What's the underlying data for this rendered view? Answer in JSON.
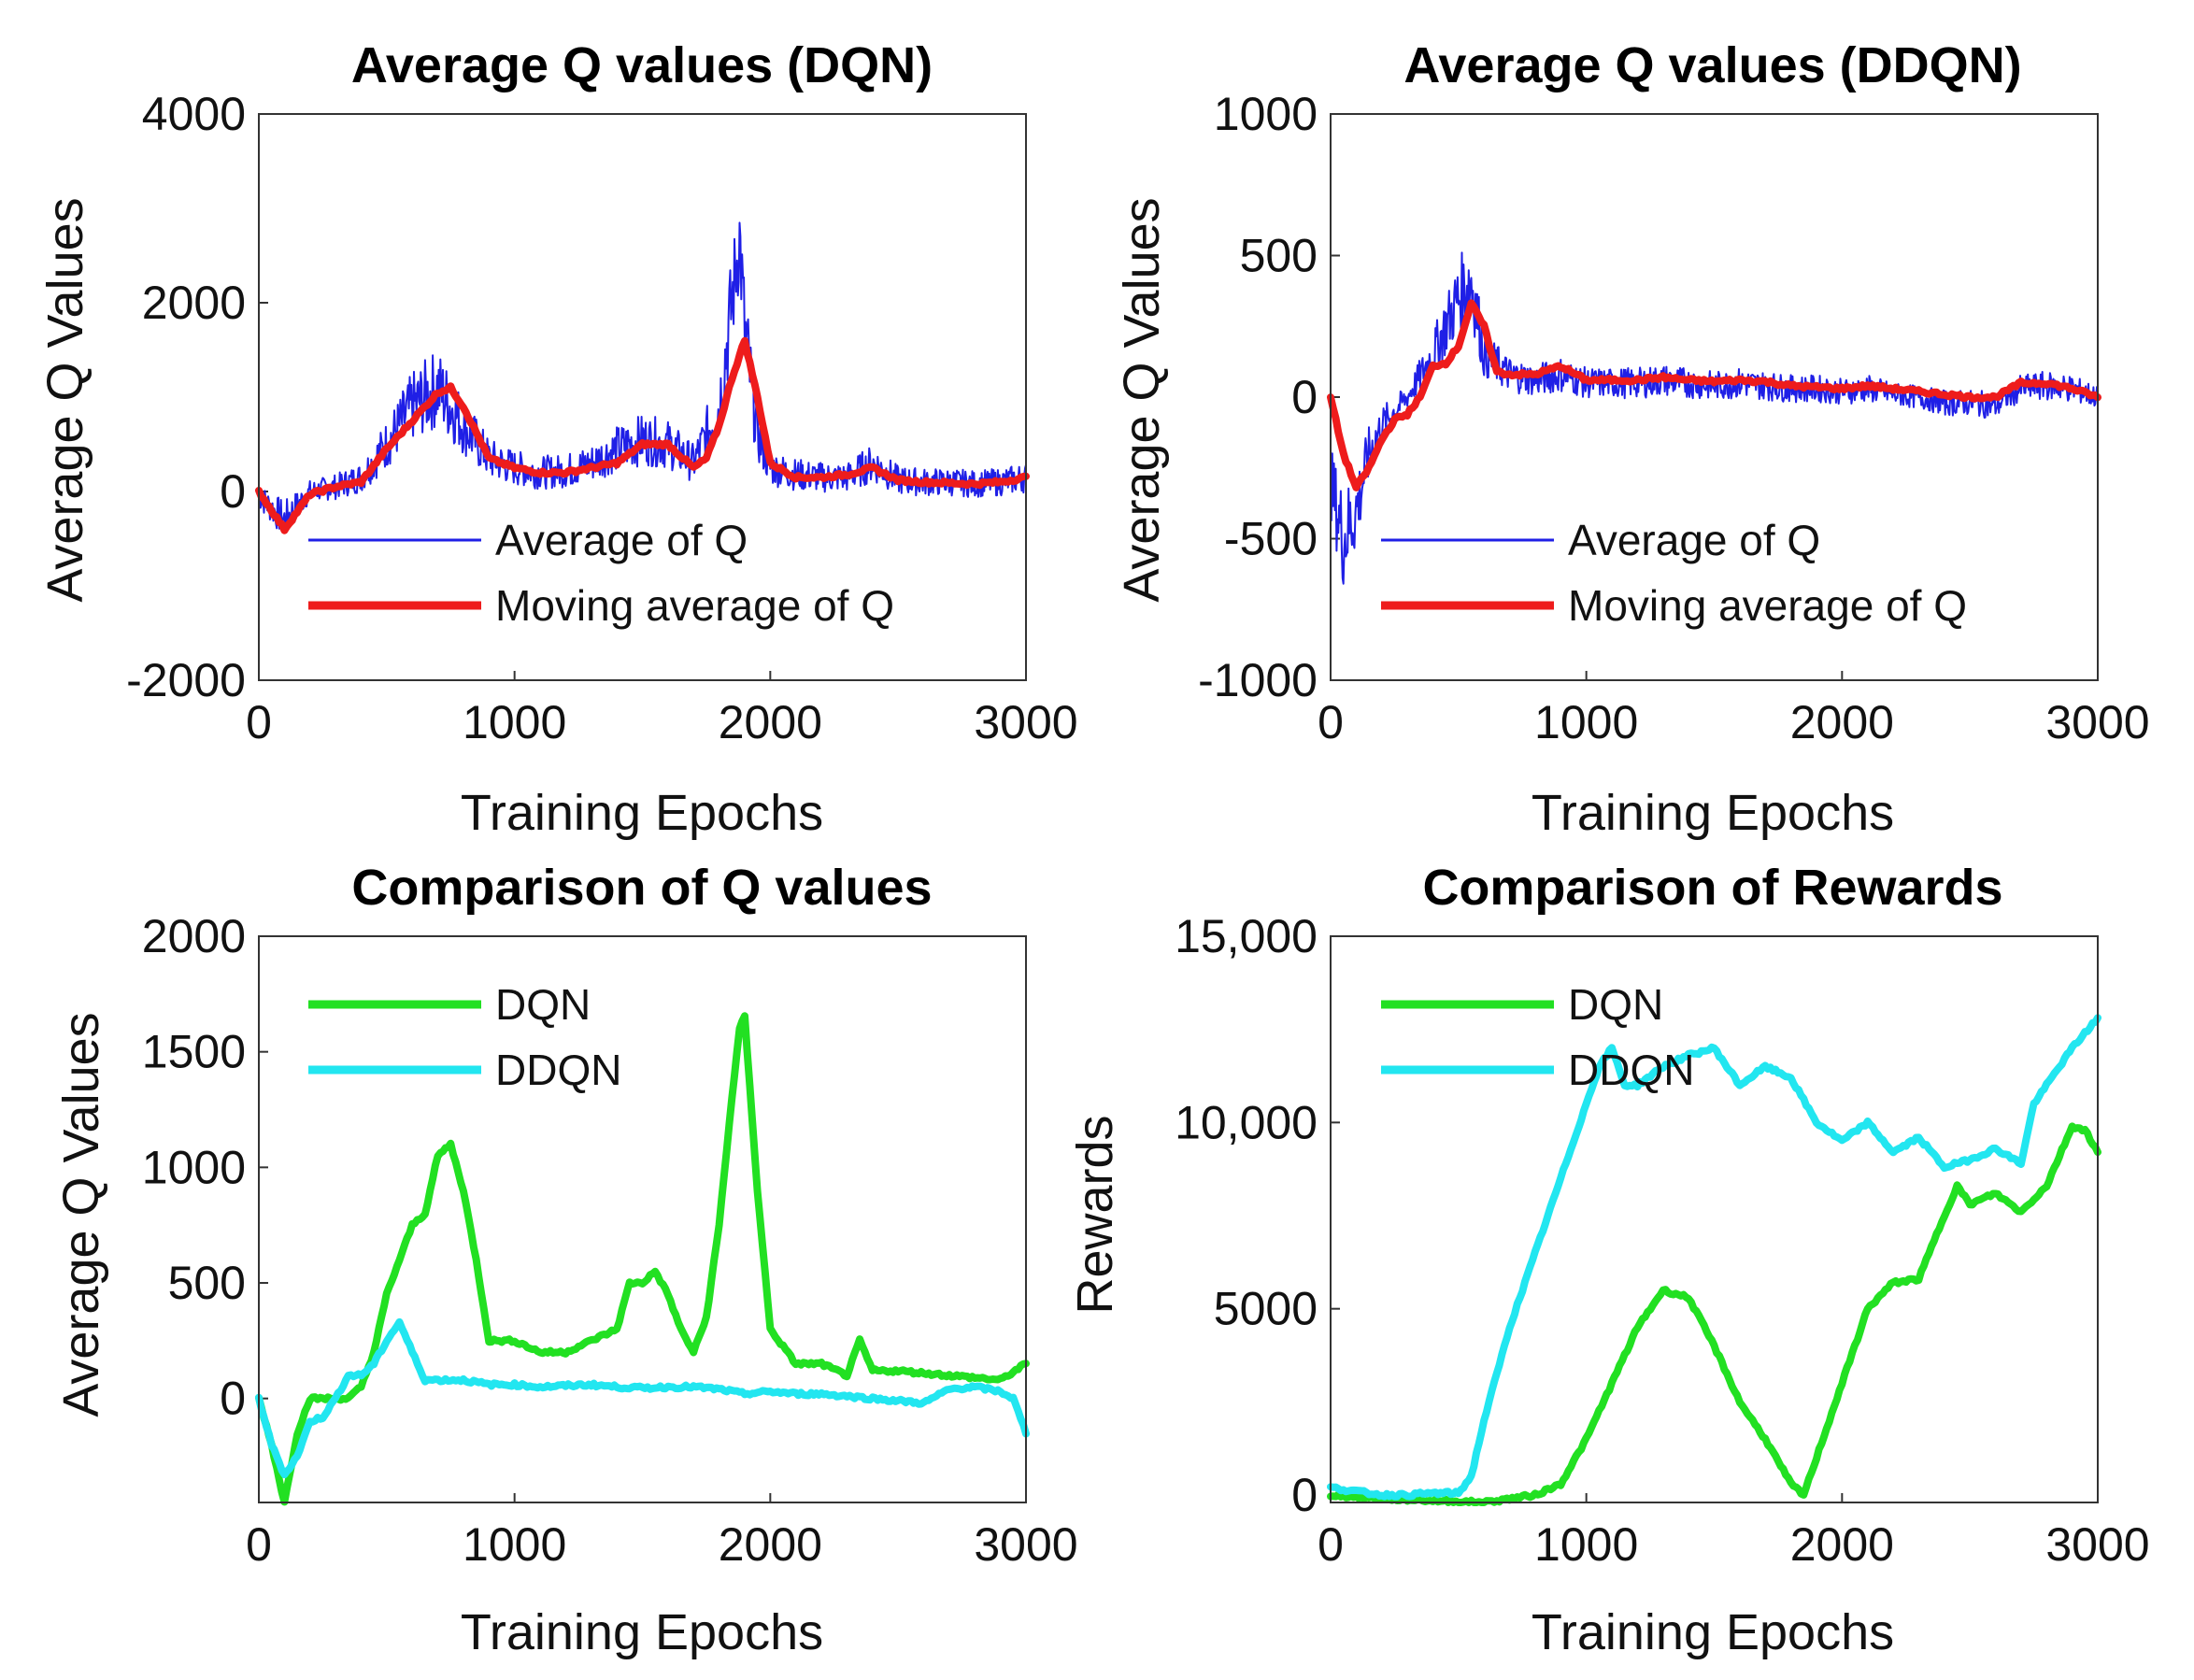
{
  "chart_data": [
    {
      "type": "line",
      "title": "Average Q values (DQN)",
      "xlabel": "Training Epochs",
      "ylabel": "Average Q Values",
      "xlim": [
        0,
        3000
      ],
      "ylim": [
        -2000,
        4000
      ],
      "xticks": [
        0,
        1000,
        2000,
        3000
      ],
      "xtick_labels": [
        "0",
        "1000",
        "2000",
        "3000"
      ],
      "yticks": [
        -2000,
        0,
        2000,
        4000
      ],
      "ytick_labels": [
        "-2000",
        "0",
        "2000",
        "4000"
      ],
      "legend_position": "center",
      "series": [
        {
          "name": "Average of Q",
          "color": "#1f1fe6",
          "noise": true,
          "x": [
            0,
            100,
            200,
            300,
            400,
            500,
            600,
            700,
            800,
            900,
            1000,
            1100,
            1200,
            1300,
            1400,
            1500,
            1600,
            1700,
            1800,
            1850,
            1880,
            1900,
            1950,
            2000,
            2100,
            2200,
            2300,
            2400,
            2500,
            2600,
            2700,
            2800,
            2900,
            3000
          ],
          "y": [
            -50,
            -300,
            0,
            50,
            150,
            500,
            900,
            1100,
            700,
            350,
            250,
            200,
            220,
            300,
            450,
            550,
            500,
            300,
            900,
            2000,
            2700,
            1700,
            600,
            250,
            180,
            150,
            150,
            300,
            120,
            100,
            100,
            80,
            100,
            150
          ]
        },
        {
          "name": "Moving average of Q",
          "color": "#ee1c1c",
          "noise": false,
          "x": [
            0,
            100,
            200,
            300,
            400,
            500,
            600,
            700,
            750,
            800,
            900,
            1000,
            1100,
            1200,
            1300,
            1400,
            1500,
            1600,
            1700,
            1750,
            1800,
            1850,
            1900,
            1950,
            2000,
            2100,
            2200,
            2300,
            2400,
            2500,
            2600,
            2700,
            2800,
            2900,
            3000
          ],
          "y": [
            0,
            -400,
            -30,
            50,
            100,
            450,
            750,
            1050,
            1100,
            900,
            350,
            250,
            200,
            200,
            250,
            300,
            500,
            500,
            250,
            350,
            700,
            1200,
            1600,
            1000,
            300,
            150,
            150,
            180,
            250,
            120,
            100,
            90,
            80,
            100,
            150
          ]
        }
      ]
    },
    {
      "type": "line",
      "title": "Average Q values (DDQN)",
      "xlabel": "Training Epochs",
      "ylabel": "Average Q Values",
      "xlim": [
        0,
        3000
      ],
      "ylim": [
        -1000,
        1000
      ],
      "xticks": [
        0,
        1000,
        2000,
        3000
      ],
      "xtick_labels": [
        "0",
        "1000",
        "2000",
        "3000"
      ],
      "yticks": [
        -1000,
        -500,
        0,
        500,
        1000
      ],
      "ytick_labels": [
        "-1000",
        "-500",
        "0",
        "500",
        "1000"
      ],
      "legend_position": "center",
      "series": [
        {
          "name": "Average of Q",
          "color": "#1f1fe6",
          "noise": true,
          "x": [
            0,
            50,
            100,
            150,
            200,
            300,
            400,
            500,
            550,
            600,
            700,
            800,
            900,
            1000,
            1100,
            1200,
            1300,
            1400,
            1500,
            1600,
            1700,
            1800,
            1900,
            2000,
            2100,
            2200,
            2300,
            2400,
            2500,
            2600,
            2700,
            2800,
            2900,
            3000
          ],
          "y": [
            -300,
            -500,
            -400,
            -200,
            -100,
            0,
            150,
            350,
            420,
            150,
            80,
            60,
            80,
            50,
            50,
            50,
            60,
            50,
            40,
            50,
            40,
            30,
            30,
            20,
            30,
            10,
            0,
            -20,
            -20,
            -30,
            30,
            40,
            30,
            0
          ]
        },
        {
          "name": "Moving average of Q",
          "color": "#ee1c1c",
          "noise": false,
          "x": [
            0,
            50,
            100,
            150,
            200,
            250,
            300,
            350,
            400,
            450,
            500,
            550,
            600,
            650,
            700,
            800,
            900,
            1000,
            1100,
            1200,
            1300,
            1400,
            1500,
            1600,
            1700,
            1800,
            1900,
            2000,
            2100,
            2200,
            2300,
            2400,
            2500,
            2600,
            2700,
            2800,
            2900,
            3000
          ],
          "y": [
            0,
            -200,
            -320,
            -250,
            -150,
            -80,
            -60,
            0,
            110,
            120,
            180,
            330,
            250,
            90,
            80,
            80,
            110,
            60,
            60,
            60,
            70,
            60,
            55,
            60,
            55,
            40,
            35,
            30,
            40,
            30,
            20,
            10,
            0,
            0,
            50,
            50,
            30,
            0
          ]
        }
      ]
    },
    {
      "type": "line",
      "title": "Comparison of Q values",
      "xlabel": "Training Epochs",
      "ylabel": "Average Q Values",
      "xlim": [
        0,
        3000
      ],
      "ylim": [
        -450,
        2000
      ],
      "xticks": [
        0,
        1000,
        2000,
        3000
      ],
      "xtick_labels": [
        "0",
        "1000",
        "2000",
        "3000"
      ],
      "yticks": [
        0,
        500,
        1000,
        1500,
        2000
      ],
      "ytick_labels": [
        "0",
        "500",
        "1000",
        "1500",
        "2000"
      ],
      "legend_position": "top-left",
      "series": [
        {
          "name": "DQN",
          "color": "#22e022",
          "noise": false,
          "x": [
            0,
            50,
            100,
            150,
            200,
            250,
            300,
            350,
            400,
            450,
            500,
            550,
            600,
            650,
            700,
            750,
            800,
            850,
            900,
            1000,
            1100,
            1200,
            1300,
            1400,
            1450,
            1500,
            1550,
            1600,
            1650,
            1700,
            1750,
            1800,
            1850,
            1880,
            1900,
            1950,
            2000,
            2100,
            2200,
            2300,
            2350,
            2400,
            2500,
            2600,
            2700,
            2800,
            2900,
            3000
          ],
          "y": [
            0,
            -200,
            -450,
            -150,
            0,
            0,
            0,
            0,
            50,
            200,
            450,
            600,
            750,
            800,
            1050,
            1100,
            900,
            600,
            250,
            250,
            200,
            200,
            250,
            300,
            500,
            500,
            550,
            450,
            300,
            200,
            350,
            750,
            1300,
            1600,
            1650,
            900,
            300,
            150,
            150,
            100,
            250,
            120,
            120,
            110,
            100,
            90,
            80,
            150
          ]
        },
        {
          "name": "DDQN",
          "color": "#22e6f0",
          "noise": false,
          "x": [
            0,
            50,
            100,
            150,
            200,
            250,
            300,
            350,
            400,
            450,
            500,
            550,
            600,
            650,
            700,
            800,
            900,
            1000,
            1100,
            1200,
            1300,
            1400,
            1500,
            1600,
            1700,
            1800,
            1900,
            2000,
            2100,
            2200,
            2300,
            2400,
            2500,
            2600,
            2700,
            2800,
            2900,
            2950,
            3000
          ],
          "y": [
            0,
            -200,
            -330,
            -250,
            -100,
            -80,
            0,
            100,
            100,
            150,
            250,
            330,
            200,
            80,
            80,
            80,
            60,
            60,
            50,
            55,
            60,
            50,
            45,
            50,
            50,
            40,
            20,
            30,
            20,
            20,
            10,
            0,
            -10,
            -20,
            40,
            50,
            30,
            0,
            -150
          ]
        }
      ]
    },
    {
      "type": "line",
      "title": "Comparison of Rewards",
      "xlabel": "Training Epochs",
      "ylabel": "Rewards",
      "xlim": [
        0,
        3000
      ],
      "ylim": [
        -200,
        15000
      ],
      "xticks": [
        0,
        1000,
        2000,
        3000
      ],
      "xtick_labels": [
        "0",
        "1000",
        "2000",
        "3000"
      ],
      "yticks": [
        0,
        5000,
        10000,
        15000
      ],
      "ytick_labels": [
        "0",
        "5000",
        "10,000",
        "15,000"
      ],
      "legend_position": "top-left",
      "series": [
        {
          "name": "DQN",
          "color": "#22e022",
          "noise": false,
          "x": [
            0,
            200,
            400,
            600,
            700,
            800,
            900,
            1000,
            1100,
            1200,
            1300,
            1400,
            1500,
            1600,
            1700,
            1800,
            1850,
            1900,
            2000,
            2100,
            2200,
            2300,
            2400,
            2450,
            2500,
            2600,
            2700,
            2800,
            2900,
            2950,
            3000
          ],
          "y": [
            0,
            -100,
            -150,
            -200,
            -100,
            0,
            300,
            1500,
            3000,
            4500,
            5500,
            5300,
            4000,
            2500,
            1500,
            300,
            0,
            1000,
            3000,
            5000,
            5700,
            5800,
            7500,
            8300,
            7800,
            8100,
            7600,
            8300,
            9900,
            9800,
            9200
          ]
        },
        {
          "name": "DDQN",
          "color": "#22e6f0",
          "noise": false,
          "x": [
            0,
            100,
            200,
            300,
            400,
            500,
            550,
            600,
            700,
            800,
            900,
            1000,
            1050,
            1100,
            1150,
            1200,
            1300,
            1400,
            1500,
            1600,
            1700,
            1800,
            1900,
            2000,
            2100,
            2200,
            2300,
            2400,
            2500,
            2600,
            2700,
            2750,
            2800,
            2900,
            3000
          ],
          "y": [
            200,
            100,
            0,
            0,
            50,
            50,
            500,
            2000,
            4500,
            6500,
            8500,
            10500,
            11500,
            12000,
            11000,
            11000,
            11500,
            11800,
            12000,
            11000,
            11500,
            11200,
            10000,
            9500,
            10000,
            9200,
            9600,
            8800,
            9000,
            9300,
            8900,
            10500,
            11000,
            12000,
            12800
          ]
        }
      ]
    }
  ]
}
